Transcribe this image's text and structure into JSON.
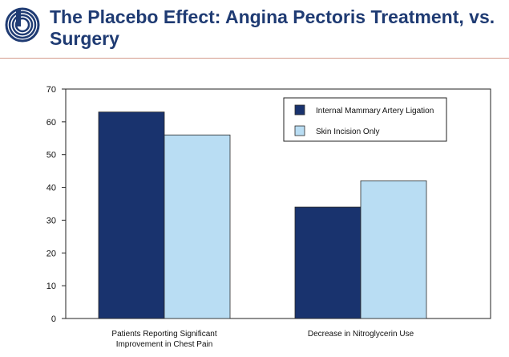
{
  "header": {
    "title": "The Placebo Effect: Angina Pectoris Treatment, vs. Surgery"
  },
  "colors": {
    "title": "#1f3b73",
    "logo_ring": "#1f3b73",
    "series_dark": "#19336e",
    "series_light": "#b9ddf3",
    "rule": "#d49b8c"
  },
  "chart_data": {
    "type": "bar",
    "title": "",
    "xlabel": "",
    "ylabel": "",
    "ylim": [
      0,
      70
    ],
    "yticks": [
      0,
      10,
      20,
      30,
      40,
      50,
      60,
      70
    ],
    "categories": [
      [
        "Patients Reporting Significant",
        "Improvement in Chest Pain"
      ],
      [
        "Decrease in Nitroglycerin Use"
      ]
    ],
    "series": [
      {
        "name": "Internal Mammary Artery Ligation",
        "values": [
          63,
          34
        ],
        "color": "#19336e"
      },
      {
        "name": "Skin Incision Only",
        "values": [
          56,
          42
        ],
        "color": "#b9ddf3"
      }
    ],
    "legend": "top-right",
    "grid": false
  }
}
